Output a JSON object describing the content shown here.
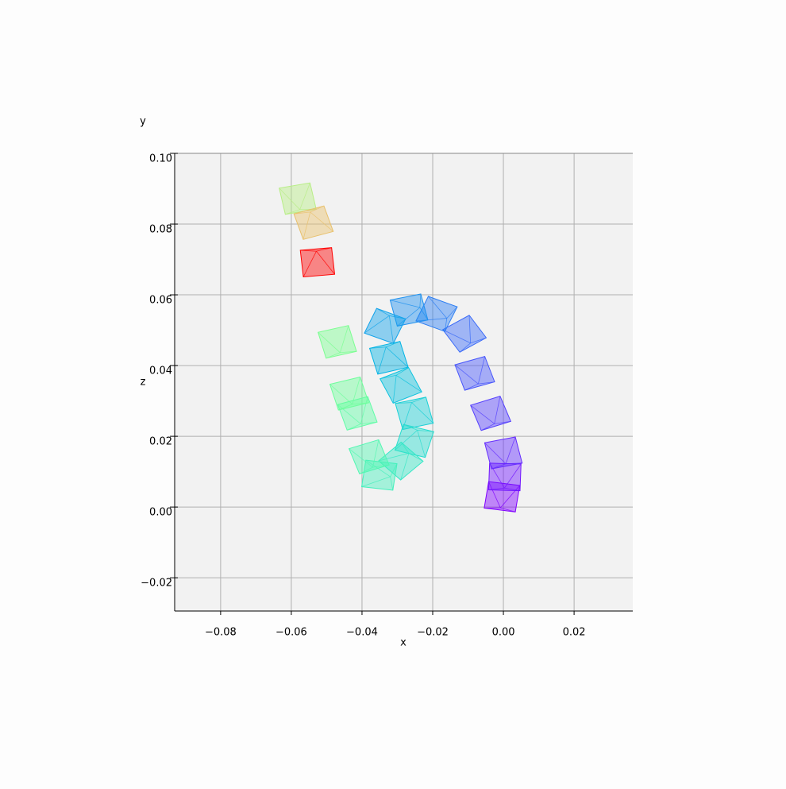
{
  "chart_data": {
    "type": "frustum",
    "xlabel": "x",
    "ylabel": "z",
    "zlabel": "y",
    "x": [
      -0.0004,
      0.0004,
      0.0,
      -0.0036,
      -0.0081,
      -0.011,
      -0.0189,
      -0.0267,
      -0.0335,
      -0.0324,
      -0.029,
      -0.0252,
      -0.0252,
      -0.029,
      -0.0351,
      -0.038,
      -0.0413,
      -0.0436,
      -0.047,
      -0.0582,
      -0.0537,
      -0.0526
    ],
    "values": [
      0.0029,
      0.0085,
      0.0153,
      0.0265,
      0.0378,
      0.049,
      0.0546,
      0.0557,
      0.0512,
      0.0422,
      0.0344,
      0.0265,
      0.0187,
      0.013,
      0.009,
      0.0142,
      0.0265,
      0.0321,
      0.0467,
      0.0872,
      0.0804,
      0.0692
    ],
    "colors": [
      "#8000ff",
      "#7216ff",
      "#642cfe",
      "#5641fd",
      "#4856fb",
      "#3a6af8",
      "#2c7ef3",
      "#1e91ef",
      "#10a2ea",
      "#02b3e4",
      "#0cc2de",
      "#1ad0d6",
      "#28dccf",
      "#36e7c6",
      "#44f0bc",
      "#52f7b2",
      "#60fca7",
      "#6efe9c",
      "#7cfe92",
      "#b8ee86",
      "#e8c06c",
      "#ff0000"
    ],
    "xlim": [
      -0.093,
      0.0366
    ],
    "ylim": [
      -0.0294,
      0.1
    ],
    "xticks": [
      {
        "value": -0.08,
        "label": "−0.08"
      },
      {
        "value": -0.06,
        "label": "−0.06"
      },
      {
        "value": -0.04,
        "label": "−0.04"
      },
      {
        "value": -0.02,
        "label": "−0.02"
      },
      {
        "value": 0,
        "label": "0.00"
      },
      0.02
    ],
    "yticks": [
      {
        "value": -0.02,
        "label": "−0.02"
      },
      {
        "value": 0,
        "label": "0.00"
      },
      0.02,
      0.04,
      0.06,
      0.08,
      {
        "value": 0.1,
        "label": "0.10"
      }
    ],
    "grid": true
  }
}
